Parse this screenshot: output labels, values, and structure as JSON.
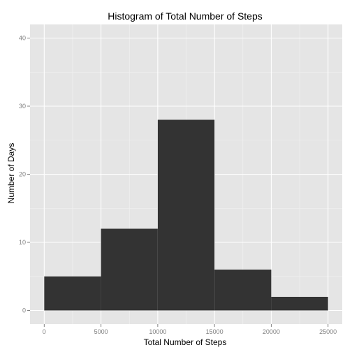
{
  "chart_data": {
    "type": "bar",
    "title": "Histogram of Total Number of Steps",
    "xlabel": "Total Number of Steps",
    "ylabel": "Number of Days",
    "bins": [
      {
        "start": 0,
        "end": 5000,
        "count": 5
      },
      {
        "start": 5000,
        "end": 10000,
        "count": 12
      },
      {
        "start": 10000,
        "end": 15000,
        "count": 28
      },
      {
        "start": 15000,
        "end": 20000,
        "count": 6
      },
      {
        "start": 20000,
        "end": 25000,
        "count": 2
      }
    ],
    "xlim": [
      -1250,
      26250
    ],
    "ylim": [
      -2,
      42
    ],
    "x_ticks": [
      0,
      5000,
      10000,
      15000,
      20000,
      25000
    ],
    "x_tick_labels": [
      "0",
      "5000",
      "10000",
      "15000",
      "20000",
      "25000"
    ],
    "y_ticks": [
      0,
      10,
      20,
      30,
      40
    ],
    "y_tick_labels": [
      "0",
      "10",
      "20",
      "30",
      "40"
    ],
    "grid": true,
    "legend": false,
    "colors": {
      "panel_background": "#e5e5e5",
      "grid_major": "#ffffff",
      "grid_minor": "#f2f2f2",
      "bar_fill": "#333333",
      "tick_text": "#7f7f7f",
      "tick_mark": "#7f7f7f"
    }
  }
}
